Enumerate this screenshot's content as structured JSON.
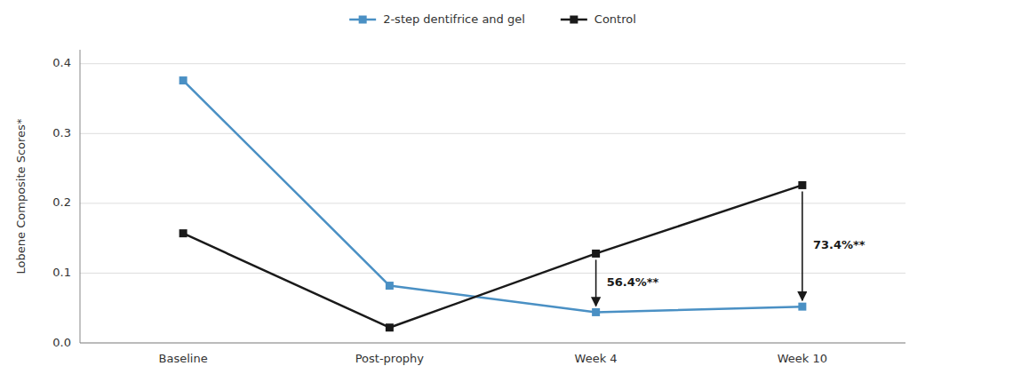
{
  "chart_data": {
    "type": "line",
    "categories": [
      "Baseline",
      "Post-prophy",
      "Week 4",
      "Week 10"
    ],
    "series": [
      {
        "name": "2-step dentifrice and gel",
        "color": "#4a90c4",
        "values": [
          0.376,
          0.082,
          0.044,
          0.052
        ]
      },
      {
        "name": "Control",
        "color": "#1a1a1a",
        "values": [
          0.157,
          0.022,
          0.128,
          0.226
        ]
      }
    ],
    "y_label": "Lobene Composite Scores*",
    "ylim": [
      0,
      0.42
    ],
    "yticks": [
      {
        "value": 0,
        "label": "0.0"
      },
      0.1,
      0.2,
      0.3,
      0.4
    ],
    "grid": true,
    "legend": "top",
    "marker": "square",
    "annotations": [
      {
        "text": "56.4%**",
        "category": "Week 4",
        "from": 0.128,
        "to": 0.044
      },
      {
        "text": "73.4%**",
        "category": "Week 10",
        "from": 0.226,
        "to": 0.052
      }
    ]
  }
}
